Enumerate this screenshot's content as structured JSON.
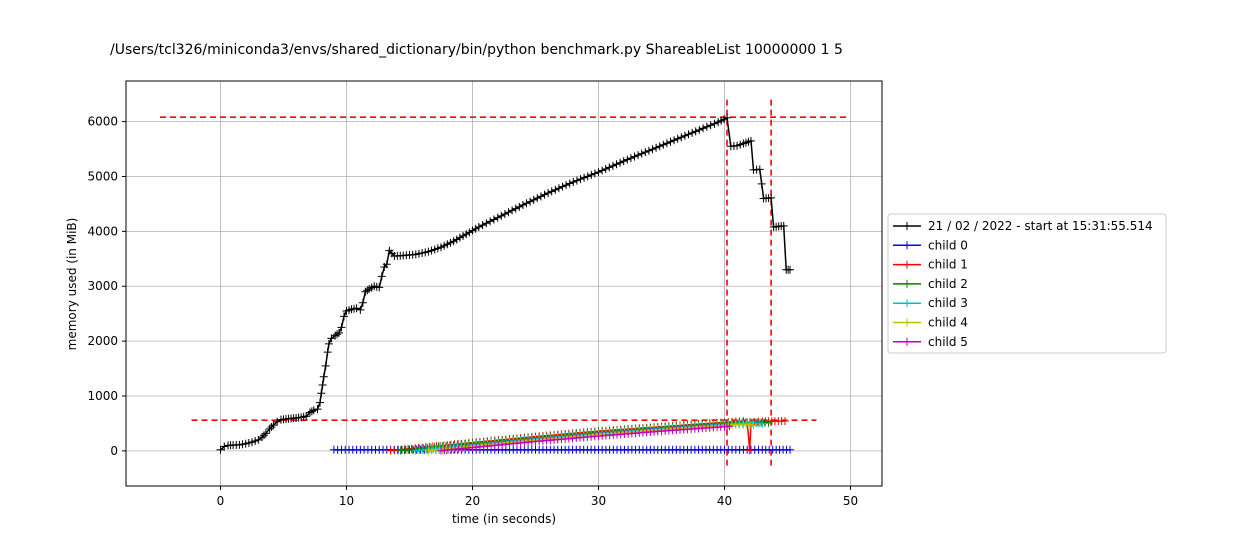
{
  "chart_data": {
    "type": "line",
    "title": "/Users/tcl326/miniconda3/envs/shared_dictionary/bin/python benchmark.py ShareableList 10000000 1 5",
    "xlabel": "time (in seconds)",
    "ylabel": "memory used (in MiB)",
    "xlim": [
      -7.5,
      52.5
    ],
    "ylim": [
      -640,
      6740
    ],
    "xticks": [
      0,
      10,
      20,
      30,
      40,
      50
    ],
    "yticks": [
      0,
      1000,
      2000,
      3000,
      4000,
      5000,
      6000
    ],
    "grid": true,
    "legend_position": "outside-right",
    "reference_lines": {
      "horizontal": [
        {
          "y": 6080,
          "x_range": [
            -4.8,
            49.8
          ],
          "color": "#ff0000"
        },
        {
          "y": 560,
          "x_range": [
            -2.3,
            47.3
          ],
          "color": "#ff0000"
        }
      ],
      "vertical": [
        {
          "x": 40.2,
          "y_range": [
            -300,
            6400
          ],
          "color": "#ff0000"
        },
        {
          "x": 43.7,
          "y_range": [
            -300,
            6400
          ],
          "color": "#ff0000"
        }
      ]
    },
    "series": [
      {
        "name": "21 / 02 / 2022 - start at 15:31:55.514",
        "color": "#000000",
        "points": [
          [
            0,
            20
          ],
          [
            0.3,
            80
          ],
          [
            0.6,
            100
          ],
          [
            1,
            105
          ],
          [
            1.5,
            110
          ],
          [
            2,
            130
          ],
          [
            2.5,
            160
          ],
          [
            3,
            200
          ],
          [
            3.3,
            250
          ],
          [
            3.6,
            320
          ],
          [
            3.9,
            400
          ],
          [
            4.2,
            470
          ],
          [
            4.5,
            530
          ],
          [
            4.8,
            570
          ],
          [
            5.2,
            580
          ],
          [
            5.6,
            590
          ],
          [
            6,
            600
          ],
          [
            6.4,
            610
          ],
          [
            6.8,
            630
          ],
          [
            7.1,
            700
          ],
          [
            7.4,
            740
          ],
          [
            7.7,
            760
          ],
          [
            7.9,
            880
          ],
          [
            8.0,
            1050
          ],
          [
            8.1,
            1200
          ],
          [
            8.2,
            1350
          ],
          [
            8.35,
            1550
          ],
          [
            8.5,
            1800
          ],
          [
            8.6,
            1950
          ],
          [
            8.8,
            2050
          ],
          [
            9.1,
            2100
          ],
          [
            9.4,
            2150
          ],
          [
            9.6,
            2250
          ],
          [
            9.8,
            2450
          ],
          [
            10,
            2550
          ],
          [
            10.4,
            2580
          ],
          [
            10.8,
            2600
          ],
          [
            11.1,
            2570
          ],
          [
            11.3,
            2700
          ],
          [
            11.5,
            2900
          ],
          [
            11.8,
            2950
          ],
          [
            12.2,
            3000
          ],
          [
            12.6,
            2980
          ],
          [
            12.8,
            3180
          ],
          [
            13.0,
            3350
          ],
          [
            13.2,
            3400
          ],
          [
            13.4,
            3650
          ],
          [
            13.6,
            3600
          ],
          [
            13.8,
            3550
          ],
          [
            14.5,
            3560
          ],
          [
            15.5,
            3580
          ],
          [
            16.5,
            3630
          ],
          [
            17.5,
            3710
          ],
          [
            18.5,
            3820
          ],
          [
            19.5,
            3950
          ],
          [
            20.5,
            4080
          ],
          [
            22,
            4250
          ],
          [
            24,
            4480
          ],
          [
            26,
            4700
          ],
          [
            28,
            4900
          ],
          [
            30,
            5080
          ],
          [
            32,
            5280
          ],
          [
            34,
            5470
          ],
          [
            36,
            5660
          ],
          [
            38,
            5850
          ],
          [
            39.5,
            5990
          ],
          [
            40.2,
            6070
          ],
          [
            40.5,
            5550
          ],
          [
            41,
            5560
          ],
          [
            41.5,
            5600
          ],
          [
            42.1,
            5650
          ],
          [
            42.3,
            5120
          ],
          [
            42.8,
            5130
          ],
          [
            43.1,
            4600
          ],
          [
            43.7,
            4610
          ],
          [
            43.9,
            4080
          ],
          [
            44.3,
            4090
          ],
          [
            44.7,
            4100
          ],
          [
            44.9,
            3300
          ],
          [
            45.2,
            3300
          ]
        ]
      },
      {
        "name": "child 0",
        "color": "#0000ff",
        "points": [
          [
            9,
            20
          ],
          [
            15,
            20
          ],
          [
            20,
            20
          ],
          [
            25,
            20
          ],
          [
            30,
            20
          ],
          [
            35,
            20
          ],
          [
            40,
            20
          ],
          [
            43,
            20
          ],
          [
            45.2,
            20
          ]
        ]
      },
      {
        "name": "child 1",
        "color": "#ff0000",
        "points": [
          [
            13.5,
            5
          ],
          [
            16,
            60
          ],
          [
            20,
            150
          ],
          [
            25,
            260
          ],
          [
            30,
            360
          ],
          [
            35,
            440
          ],
          [
            40,
            520
          ],
          [
            41.5,
            540
          ],
          [
            41.8,
            520
          ],
          [
            42,
            10
          ],
          [
            42.1,
            520
          ],
          [
            43,
            540
          ],
          [
            44,
            540
          ],
          [
            44.8,
            545
          ]
        ]
      },
      {
        "name": "child 2",
        "color": "#008000",
        "points": [
          [
            14.3,
            5
          ],
          [
            17,
            70
          ],
          [
            20,
            140
          ],
          [
            25,
            240
          ],
          [
            30,
            340
          ],
          [
            35,
            430
          ],
          [
            40,
            510
          ],
          [
            42,
            520
          ],
          [
            43.5,
            510
          ]
        ]
      },
      {
        "name": "child 3",
        "color": "#00bfbf",
        "points": [
          [
            15.5,
            5
          ],
          [
            18,
            60
          ],
          [
            20,
            110
          ],
          [
            25,
            220
          ],
          [
            30,
            320
          ],
          [
            35,
            410
          ],
          [
            40,
            490
          ],
          [
            42,
            510
          ],
          [
            43,
            500
          ]
        ]
      },
      {
        "name": "child 4",
        "color": "#bfbf00",
        "points": [
          [
            16.5,
            5
          ],
          [
            18.5,
            50
          ],
          [
            20,
            90
          ],
          [
            25,
            200
          ],
          [
            30,
            300
          ],
          [
            35,
            390
          ],
          [
            40,
            470
          ],
          [
            41.5,
            480
          ],
          [
            42.3,
            470
          ]
        ]
      },
      {
        "name": "child 5",
        "color": "#bf00bf",
        "points": [
          [
            17.5,
            5
          ],
          [
            20,
            60
          ],
          [
            25,
            170
          ],
          [
            30,
            270
          ],
          [
            35,
            360
          ],
          [
            40,
            440
          ],
          [
            40.4,
            450
          ]
        ]
      }
    ]
  }
}
